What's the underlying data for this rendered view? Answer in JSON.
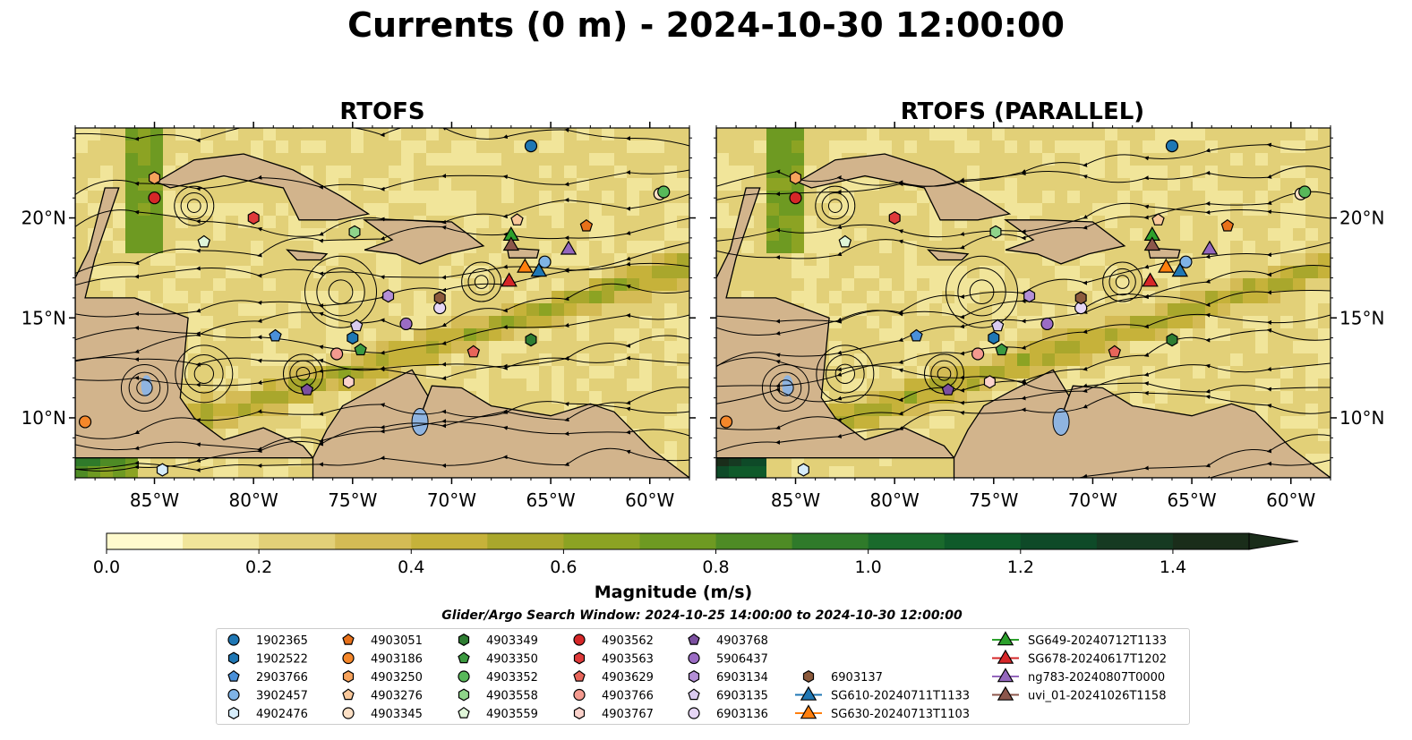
{
  "figure": {
    "title": "Currents (0 m) - 2024-10-30 12:00:00"
  },
  "chart_data": [
    {
      "type": "heatmap",
      "title": "RTOFS",
      "lon_range": [
        -89,
        -58
      ],
      "lat_range": [
        7,
        24.5
      ],
      "x_ticks": [
        "85°W",
        "80°W",
        "75°W",
        "70°W",
        "65°W",
        "60°W"
      ],
      "y_ticks": [
        "10°N",
        "15°N",
        "20°N"
      ],
      "grid": false
    },
    {
      "type": "heatmap",
      "title": "RTOFS (PARALLEL)",
      "lon_range": [
        -89,
        -58
      ],
      "lat_range": [
        7,
        24.5
      ],
      "x_ticks": [
        "85°W",
        "80°W",
        "75°W",
        "70°W",
        "65°W",
        "60°W"
      ],
      "y_ticks": [
        "10°N",
        "15°N",
        "20°N"
      ],
      "grid": false
    }
  ],
  "colorbar": {
    "label": "Magnitude (m/s)",
    "range": [
      0,
      1.5
    ],
    "extend": "max",
    "ticks": [
      "0.0",
      "0.2",
      "0.4",
      "0.6",
      "0.8",
      "1.0",
      "1.2",
      "1.4"
    ],
    "colors": [
      "#fffacd",
      "#f1e59a",
      "#e2d078",
      "#d4bb55",
      "#c6b23a",
      "#a9a72c",
      "#8ca323",
      "#6e9a22",
      "#4e8b25",
      "#2f7a2a",
      "#1a6a2c",
      "#0f5a2a",
      "#0e4a28",
      "#163a22",
      "#1a2d1a"
    ]
  },
  "search_window": "Glider/Argo Search Window: 2024-10-25 14:00:00 to 2024-10-30 12:00:00",
  "platforms": [
    {
      "id": "1902365",
      "marker": "circle",
      "color": "#1f77b4",
      "lon": -66.0,
      "lat": 23.6
    },
    {
      "id": "1902522",
      "marker": "hexagon",
      "color": "#1f77b4",
      "lon": -75.0,
      "lat": 14.0
    },
    {
      "id": "2903766",
      "marker": "pentagon",
      "color": "#4a90d9",
      "lon": -78.9,
      "lat": 14.1
    },
    {
      "id": "3902457",
      "marker": "circle",
      "color": "#7fb3e6",
      "lon": -65.3,
      "lat": 17.8
    },
    {
      "id": "4902476",
      "marker": "hexagon",
      "color": "#d6ecfa",
      "lon": -84.6,
      "lat": 7.4
    },
    {
      "id": "4903051",
      "marker": "pentagon",
      "color": "#e8711a",
      "lon": -63.2,
      "lat": 19.6
    },
    {
      "id": "4903186",
      "marker": "circle",
      "color": "#f5872a",
      "lon": -88.5,
      "lat": 9.8
    },
    {
      "id": "4903250",
      "marker": "hexagon",
      "color": "#f7a35c",
      "lon": -85.0,
      "lat": 22.0
    },
    {
      "id": "4903276",
      "marker": "pentagon",
      "color": "#f8c79a",
      "lon": -66.7,
      "lat": 19.9
    },
    {
      "id": "4903345",
      "marker": "circle",
      "color": "#fde0c5",
      "lon": -59.5,
      "lat": 21.2
    },
    {
      "id": "4903349",
      "marker": "hexagon",
      "color": "#2e7d32",
      "lon": -66.0,
      "lat": 13.9
    },
    {
      "id": "4903350",
      "marker": "pentagon",
      "color": "#3c9a40",
      "lon": -74.6,
      "lat": 13.4
    },
    {
      "id": "4903352",
      "marker": "circle",
      "color": "#58b85a",
      "lon": -59.3,
      "lat": 21.3
    },
    {
      "id": "4903558",
      "marker": "hexagon",
      "color": "#8fd48a",
      "lon": -74.9,
      "lat": 19.3
    },
    {
      "id": "4903559",
      "marker": "pentagon",
      "color": "#dff5d8",
      "lon": -82.5,
      "lat": 18.8
    },
    {
      "id": "4903562",
      "marker": "circle",
      "color": "#d62728",
      "lon": -85.0,
      "lat": 21.0
    },
    {
      "id": "4903563",
      "marker": "hexagon",
      "color": "#e03a3a",
      "lon": -80.0,
      "lat": 20.0
    },
    {
      "id": "4903629",
      "marker": "pentagon",
      "color": "#e8655a",
      "lon": -68.9,
      "lat": 13.3
    },
    {
      "id": "4903766",
      "marker": "circle",
      "color": "#f49a8f",
      "lon": -75.8,
      "lat": 13.2
    },
    {
      "id": "4903767",
      "marker": "hexagon",
      "color": "#fbd2cb",
      "lon": -75.2,
      "lat": 11.8
    },
    {
      "id": "4903768",
      "marker": "pentagon",
      "color": "#7b4fa0",
      "lon": -77.3,
      "lat": 11.4
    },
    {
      "id": "5906437",
      "marker": "circle",
      "color": "#9b6cc4",
      "lon": -72.3,
      "lat": 14.7
    },
    {
      "id": "6903134",
      "marker": "hexagon",
      "color": "#b48fd6",
      "lon": -73.2,
      "lat": 16.1
    },
    {
      "id": "6903135",
      "marker": "pentagon",
      "color": "#dacbf0",
      "lon": -74.8,
      "lat": 14.6
    },
    {
      "id": "6903136",
      "marker": "circle",
      "color": "#e6d6f5",
      "lon": -70.6,
      "lat": 15.5
    },
    {
      "id": "6903137",
      "marker": "hexagon",
      "color": "#8c5a3c",
      "lon": -70.6,
      "lat": 16.0
    },
    {
      "id": "SG610-20240711T1133",
      "marker": "triangle",
      "color": "#1f77b4",
      "lon": -65.6,
      "lat": 17.3
    },
    {
      "id": "SG630-20240713T1103",
      "marker": "triangle",
      "color": "#ff7f0e",
      "lon": -66.3,
      "lat": 17.5
    },
    {
      "id": "SG649-20240712T1133",
      "marker": "triangle",
      "color": "#2ca02c",
      "lon": -67.0,
      "lat": 19.1
    },
    {
      "id": "SG678-20240617T1202",
      "marker": "triangle",
      "color": "#d62728",
      "lon": -67.1,
      "lat": 16.8
    },
    {
      "id": "ng783-20240807T0000",
      "marker": "triangle",
      "color": "#9467bd",
      "lon": -64.1,
      "lat": 18.4
    },
    {
      "id": "uvi_01-20241026T1158",
      "marker": "triangle",
      "color": "#8c564b",
      "lon": -67.0,
      "lat": 18.6
    }
  ],
  "colors": {
    "land": "#d2b48c",
    "lake": "#8fb4e0",
    "river": "#9bb6d6",
    "streamline": "#000000"
  }
}
